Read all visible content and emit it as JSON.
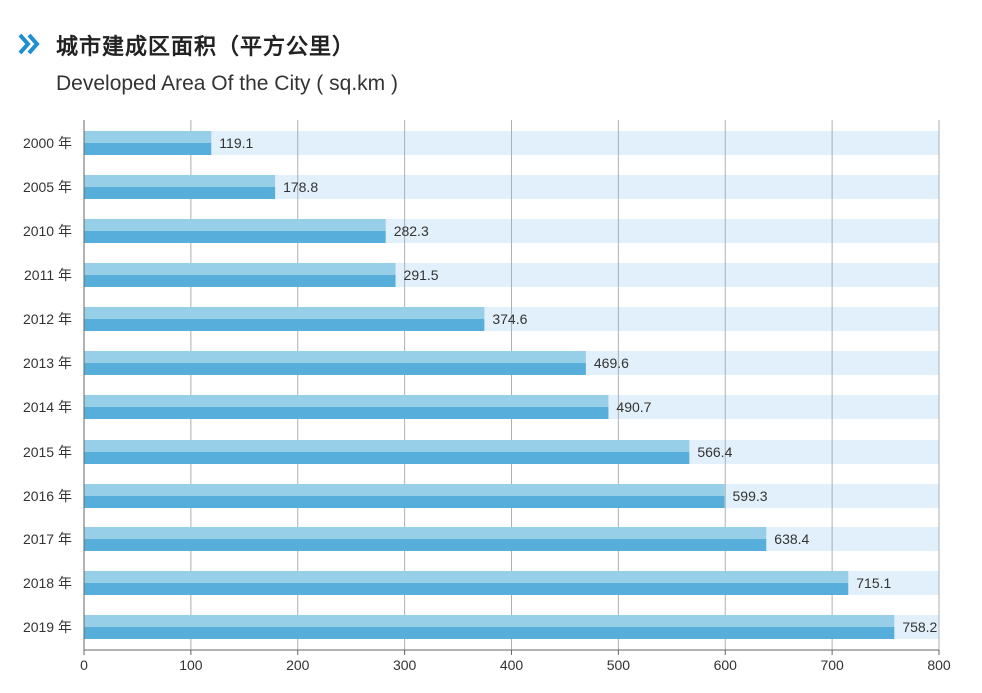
{
  "header": {
    "title_cn": "城市建成区面积（平方公里）",
    "title_en": "Developed Area Of the City ( sq.km )",
    "icon": "double-chevron-right-icon"
  },
  "colors": {
    "accent": "#1f8fd0",
    "bar_light": "#98cfe8",
    "bar_dark": "#58aedb",
    "track": "#e1f0fa",
    "grid": "#a9b0b6",
    "axis": "#666666"
  },
  "chart_data": {
    "type": "bar",
    "orientation": "horizontal",
    "title": "城市建成区面积（平方公里）",
    "subtitle": "Developed Area Of the City ( sq.km )",
    "categories": [
      "2000 年",
      "2005 年",
      "2010 年",
      "2011 年",
      "2012 年",
      "2013 年",
      "2014 年",
      "2015 年",
      "2016 年",
      "2017 年",
      "2018 年",
      "2019 年"
    ],
    "values": [
      119.1,
      178.8,
      282.3,
      291.5,
      374.6,
      469.6,
      490.7,
      566.4,
      599.3,
      638.4,
      715.1,
      758.2
    ],
    "value_labels": [
      "119.1",
      "178.8",
      "282.3",
      "291.5",
      "374.6",
      "469.6",
      "490.7",
      "566.4",
      "599.3",
      "638.4",
      "715.1",
      "758.2"
    ],
    "xticks": [
      0,
      100,
      200,
      300,
      400,
      500,
      600,
      700,
      800
    ],
    "xtick_labels": [
      "0",
      "100",
      "200",
      "300",
      "400",
      "500",
      "600",
      "700",
      "800"
    ],
    "xlim": [
      0,
      800
    ],
    "xlabel": "",
    "ylabel": "",
    "grid": true
  }
}
